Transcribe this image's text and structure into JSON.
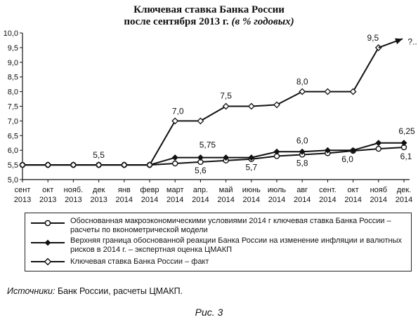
{
  "title_line1": "Ключевая ставка Банка России",
  "title_line2": "после сентября 2013 г.",
  "title_unit": "(в % годовых)",
  "chart_data": {
    "type": "line",
    "title": "Ключевая ставка Банка России после сентября 2013 г. (в % годовых)",
    "ylim": [
      5.0,
      10.0
    ],
    "y_ticks": [
      "5,0",
      "5,5",
      "6,0",
      "6,5",
      "7,0",
      "7,5",
      "8,0",
      "8,5",
      "9,0",
      "9,5",
      "10,0"
    ],
    "x_categories": [
      [
        "сент",
        "2013"
      ],
      [
        "окт",
        "2013"
      ],
      [
        "нояб.",
        "2013"
      ],
      [
        "дек",
        "2013"
      ],
      [
        "янв",
        "2014"
      ],
      [
        "февр",
        "2014"
      ],
      [
        "март",
        "2014"
      ],
      [
        "апр.",
        "2014"
      ],
      [
        "май",
        "2014"
      ],
      [
        "июнь",
        "2014"
      ],
      [
        "июль",
        "2014"
      ],
      [
        "авг",
        "2014"
      ],
      [
        "сент.",
        "2014"
      ],
      [
        "окт",
        "2014"
      ],
      [
        "нояб",
        "2014"
      ],
      [
        "дек.",
        "2014"
      ]
    ],
    "series": [
      {
        "name": "Обоснованная макроэкономическими условиями 2014 г ключевая ставка Банка России – расчеты по вконометрической модели",
        "marker": "open-circle",
        "values": [
          5.5,
          5.5,
          5.5,
          5.5,
          5.5,
          5.5,
          5.55,
          5.6,
          5.65,
          5.7,
          5.8,
          5.85,
          5.9,
          5.98,
          6.05,
          6.1
        ]
      },
      {
        "name": "Верхняя граница обоснованной реакции Банка России на изменение инфляции и валютных рисков в 2014 г. – экспертная оценка ЦМАКП",
        "marker": "filled-diamond",
        "values": [
          5.5,
          5.5,
          5.5,
          5.5,
          5.5,
          5.5,
          5.75,
          5.75,
          5.75,
          5.75,
          5.95,
          5.95,
          6.0,
          6.0,
          6.25,
          6.25
        ]
      },
      {
        "name": "Ключевая ставка Банка России – факт",
        "marker": "open-diamond",
        "values": [
          5.5,
          5.5,
          5.5,
          5.5,
          5.5,
          5.5,
          7.0,
          7.0,
          7.5,
          7.5,
          7.55,
          8.0,
          8.0,
          8.0,
          9.5,
          9.8
        ]
      }
    ],
    "annotations": [
      {
        "text": "5,5",
        "x_index": 3,
        "y": 5.5
      },
      {
        "text": "7,0",
        "x_index": 6,
        "y": 7.0
      },
      {
        "text": "7,5",
        "x_index": 8,
        "y": 7.5
      },
      {
        "text": "8,0",
        "x_index": 11,
        "y": 8.0
      },
      {
        "text": "9,5",
        "x_index": 14,
        "y": 9.5
      },
      {
        "text": "?..",
        "x_index": 15,
        "y": 9.8
      },
      {
        "text": "5,75",
        "x_index": 7,
        "y": 5.75
      },
      {
        "text": "5,6",
        "x_index": 7,
        "y": 5.6
      },
      {
        "text": "5,7",
        "x_index": 9,
        "y": 5.7
      },
      {
        "text": "6,0",
        "x_index": 11,
        "y": 5.95
      },
      {
        "text": "5,8",
        "x_index": 11,
        "y": 5.85
      },
      {
        "text": "6,0",
        "x_index": 13,
        "y": 6.0
      },
      {
        "text": "6,25",
        "x_index": 15,
        "y": 6.25
      },
      {
        "text": "6,1",
        "x_index": 15,
        "y": 6.1
      }
    ]
  },
  "legend": {
    "items": [
      "Обоснованная макроэкономическими условиями 2014 г ключевая ставка Банка России – расчеты по вконометрической модели",
      "Верхняя граница обоснованной реакции Банка России на изменение инфляции и валютных рисков в 2014 г. – экспертная оценка ЦМАКП",
      "Ключевая ставка Банка России – факт"
    ]
  },
  "source": {
    "label": "Источники:",
    "text": "Банк России, расчеты ЦМАКП."
  },
  "caption": "Рис. 3"
}
